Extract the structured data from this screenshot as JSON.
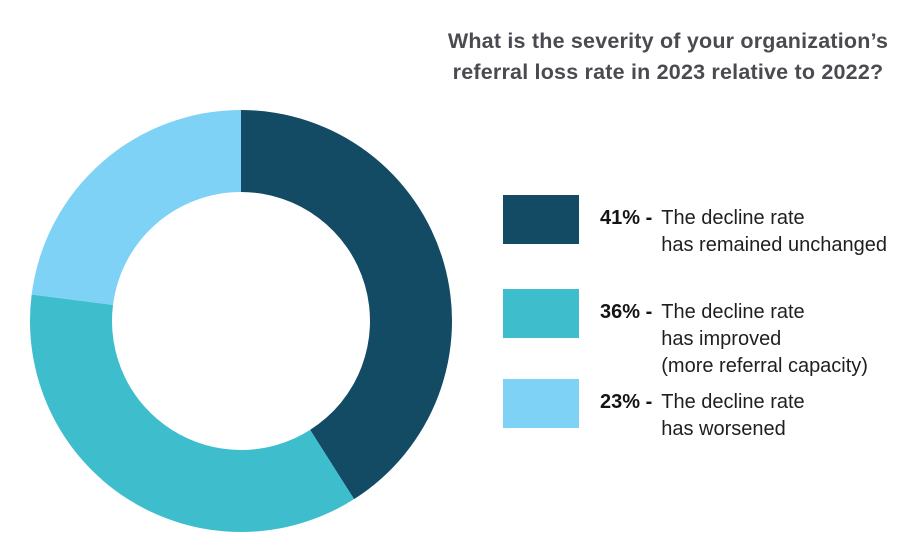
{
  "title": {
    "line1": "What is the severity of your organization’s",
    "line2": "referral loss rate in 2023 relative to 2022?"
  },
  "chart_data": {
    "type": "pie",
    "subtype": "donut",
    "title": "What is the severity of your organization’s referral loss rate in 2023 relative to 2022?",
    "categories": [
      "The decline rate has remained unchanged",
      "The decline rate has improved (more referral capacity)",
      "The decline rate has worsened"
    ],
    "values": [
      41,
      36,
      23
    ],
    "unit": "%",
    "colors": [
      "#124b63",
      "#3ebecd",
      "#7ed2f5"
    ],
    "start_angle_deg": 0,
    "direction": "clockwise",
    "inner_radius_ratio": 0.61,
    "legend_position": "right",
    "data_labels": false
  },
  "legend": {
    "items": [
      {
        "percent_label": "41% -",
        "lines": [
          "The decline rate",
          "has remained unchanged"
        ]
      },
      {
        "percent_label": "36% -",
        "lines": [
          "The decline rate",
          "has improved",
          "(more referral capacity)"
        ]
      },
      {
        "percent_label": "23% -",
        "lines": [
          "The decline rate",
          "has worsened"
        ]
      }
    ]
  }
}
